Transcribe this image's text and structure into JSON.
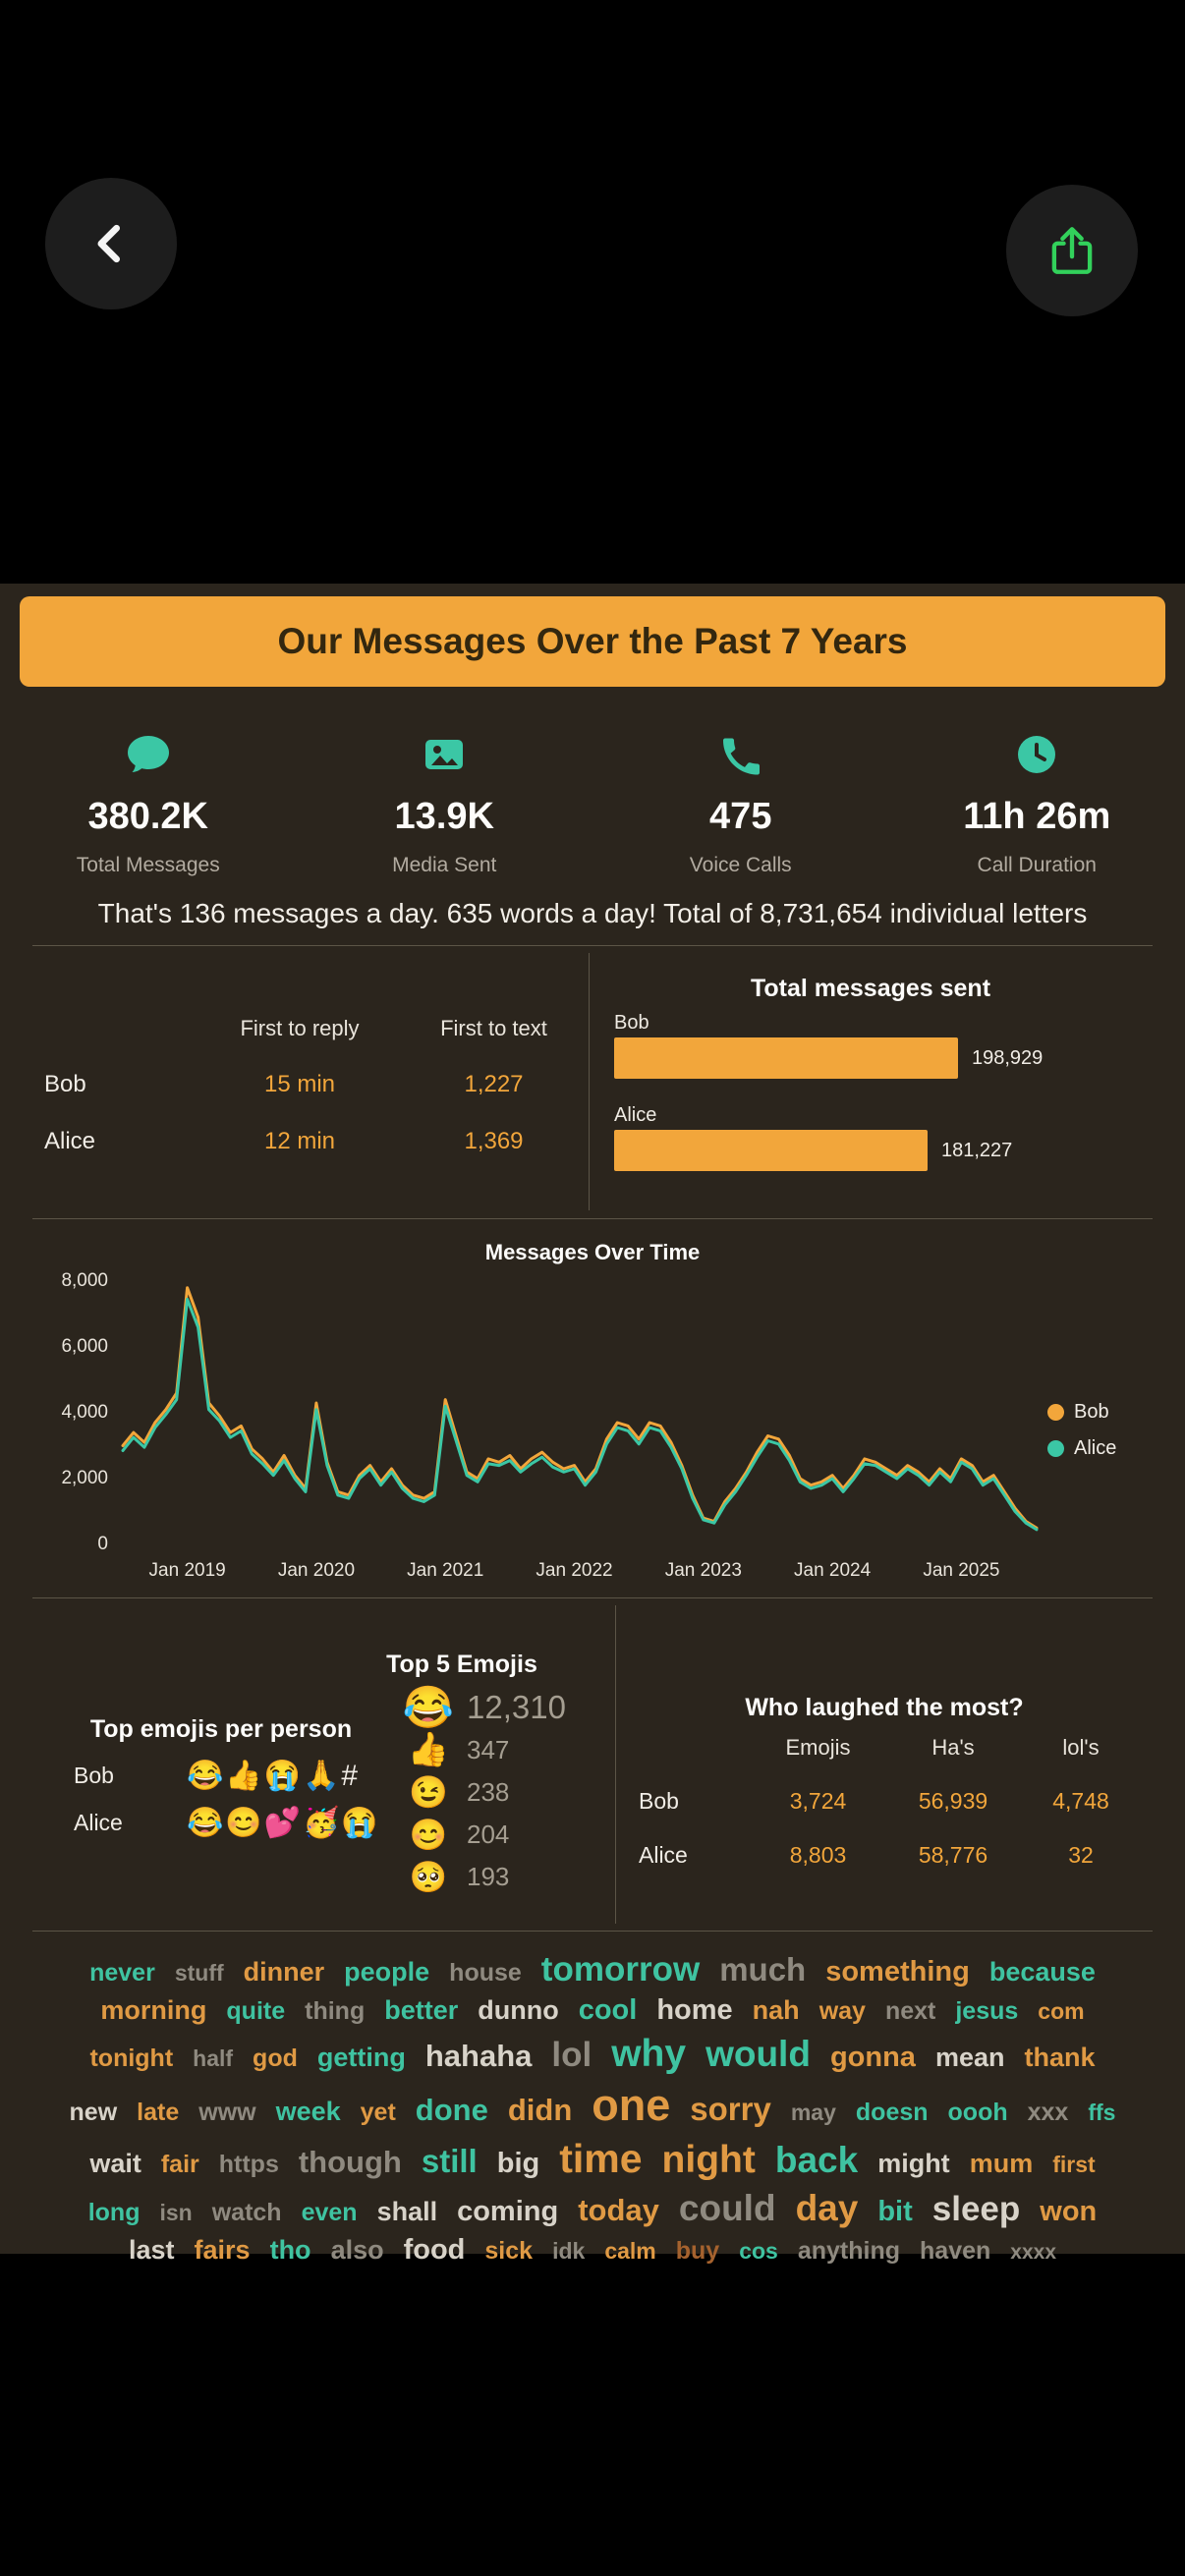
{
  "banner": {
    "title": "Our Messages Over the Past 7 Years"
  },
  "stats": [
    {
      "icon": "chat-bubble-icon",
      "value": "380.2K",
      "label": "Total Messages"
    },
    {
      "icon": "media-icon",
      "value": "13.9K",
      "label": "Media Sent"
    },
    {
      "icon": "phone-icon",
      "value": "475",
      "label": "Voice Calls"
    },
    {
      "icon": "clock-icon",
      "value": "11h 26m",
      "label": "Call Duration"
    }
  ],
  "summary": "That's 136 messages a day. 635 words a day! Total of 8,731,654 individual letters",
  "reply_table": {
    "col1": "First to reply",
    "col2": "First to text",
    "rows": [
      {
        "name": "Bob",
        "first_to_reply": "15 min",
        "first_to_text": "1,227"
      },
      {
        "name": "Alice",
        "first_to_reply": "12 min",
        "first_to_text": "1,369"
      }
    ]
  },
  "chart_data": [
    {
      "type": "bar",
      "title": "Total messages sent",
      "orientation": "horizontal",
      "categories": [
        "Bob",
        "Alice"
      ],
      "values": [
        198929,
        181227
      ],
      "value_labels": [
        "198,929",
        "181,227"
      ],
      "bar_color": "#f2a63b"
    },
    {
      "type": "line",
      "title": "Messages Over Time",
      "xlabel": "",
      "ylabel": "",
      "ylim": [
        0,
        8000
      ],
      "grid": false,
      "legend_position": "right",
      "x": [
        "2018-07",
        "2018-08",
        "2018-09",
        "2018-10",
        "2018-11",
        "2018-12",
        "2019-01",
        "2019-02",
        "2019-03",
        "2019-04",
        "2019-05",
        "2019-06",
        "2019-07",
        "2019-08",
        "2019-09",
        "2019-10",
        "2019-11",
        "2019-12",
        "2020-01",
        "2020-02",
        "2020-03",
        "2020-04",
        "2020-05",
        "2020-06",
        "2020-07",
        "2020-08",
        "2020-09",
        "2020-10",
        "2020-11",
        "2020-12",
        "2021-01",
        "2021-02",
        "2021-03",
        "2021-04",
        "2021-05",
        "2021-06",
        "2021-07",
        "2021-08",
        "2021-09",
        "2021-10",
        "2021-11",
        "2021-12",
        "2022-01",
        "2022-02",
        "2022-03",
        "2022-04",
        "2022-05",
        "2022-06",
        "2022-07",
        "2022-08",
        "2022-09",
        "2022-10",
        "2022-11",
        "2022-12",
        "2023-01",
        "2023-02",
        "2023-03",
        "2023-04",
        "2023-05",
        "2023-06",
        "2023-07",
        "2023-08",
        "2023-09",
        "2023-10",
        "2023-11",
        "2023-12",
        "2024-01",
        "2024-02",
        "2024-03",
        "2024-04",
        "2024-05",
        "2024-06",
        "2024-07",
        "2024-08",
        "2024-09",
        "2024-10",
        "2024-11",
        "2024-12",
        "2025-01",
        "2025-02",
        "2025-03",
        "2025-04",
        "2025-05",
        "2025-06",
        "2025-07",
        "2025-08"
      ],
      "series": [
        {
          "name": "Bob",
          "color": "#f2a63b",
          "values": [
            3000,
            3400,
            3100,
            3700,
            4100,
            4600,
            7800,
            6900,
            4300,
            3900,
            3400,
            3600,
            2900,
            2600,
            2200,
            2700,
            2100,
            1700,
            4300,
            2500,
            1600,
            1500,
            2100,
            2400,
            1900,
            2300,
            1800,
            1500,
            1400,
            1600,
            4400,
            3300,
            2200,
            2000,
            2600,
            2500,
            2700,
            2300,
            2600,
            2800,
            2500,
            2300,
            2400,
            1900,
            2300,
            3200,
            3700,
            3600,
            3200,
            3700,
            3600,
            3100,
            2400,
            1500,
            800,
            700,
            1300,
            1700,
            2200,
            2800,
            3300,
            3200,
            2700,
            2000,
            1800,
            1900,
            2100,
            1700,
            2100,
            2600,
            2500,
            2300,
            2100,
            2400,
            2200,
            1900,
            2300,
            2000,
            2600,
            2400,
            1900,
            2100,
            1600,
            1100,
            700,
            500
          ]
        },
        {
          "name": "Alice",
          "color": "#3bc7a5",
          "values": [
            2850,
            3250,
            2950,
            3550,
            3950,
            4400,
            7450,
            6600,
            4100,
            3750,
            3250,
            3450,
            2750,
            2450,
            2100,
            2550,
            2000,
            1600,
            4100,
            2400,
            1500,
            1400,
            2000,
            2300,
            1800,
            2200,
            1700,
            1400,
            1300,
            1500,
            4200,
            3150,
            2100,
            1900,
            2450,
            2400,
            2550,
            2200,
            2450,
            2650,
            2350,
            2200,
            2300,
            1800,
            2200,
            3050,
            3550,
            3450,
            3050,
            3550,
            3450,
            2950,
            2300,
            1400,
            750,
            650,
            1200,
            1600,
            2100,
            2650,
            3150,
            3050,
            2550,
            1900,
            1700,
            1800,
            2000,
            1600,
            2000,
            2450,
            2400,
            2200,
            2000,
            2300,
            2100,
            1800,
            2200,
            1900,
            2500,
            2300,
            1800,
            2000,
            1500,
            1000,
            650,
            450
          ]
        }
      ],
      "yticks": [
        {
          "value": 0,
          "label": "0"
        },
        {
          "value": 2000,
          "label": "2,000"
        },
        {
          "value": 4000,
          "label": "4,000"
        },
        {
          "value": 6000,
          "label": "6,000"
        },
        {
          "value": 8000,
          "label": "8,000"
        }
      ],
      "xticks": [
        {
          "i": 6,
          "label": "Jan 2019"
        },
        {
          "i": 18,
          "label": "Jan 2020"
        },
        {
          "i": 30,
          "label": "Jan 2021"
        },
        {
          "i": 42,
          "label": "Jan 2022"
        },
        {
          "i": 54,
          "label": "Jan 2023"
        },
        {
          "i": 66,
          "label": "Jan 2024"
        },
        {
          "i": 78,
          "label": "Jan 2025"
        }
      ]
    }
  ],
  "per_person_emojis": {
    "title": "Top emojis per person",
    "rows": [
      {
        "name": "Bob",
        "emojis": "😂👍😭🙏#"
      },
      {
        "name": "Alice",
        "emojis": "😂😊💕🥳😭"
      }
    ]
  },
  "top5": {
    "title": "Top 5 Emojis",
    "items": [
      {
        "emoji": "😂",
        "count": "12,310"
      },
      {
        "emoji": "👍",
        "count": "347"
      },
      {
        "emoji": "😉",
        "count": "238"
      },
      {
        "emoji": "😊",
        "count": "204"
      },
      {
        "emoji": "🥺",
        "count": "193"
      }
    ]
  },
  "laughed": {
    "title": "Who laughed the most?",
    "columns": [
      "Emojis",
      "Ha's",
      "lol's"
    ],
    "rows": [
      {
        "name": "Bob",
        "emojis": "3,724",
        "has": "56,939",
        "lols": "4,748"
      },
      {
        "name": "Alice",
        "emojis": "8,803",
        "has": "58,776",
        "lols": "32"
      }
    ]
  },
  "word_cloud": {
    "colors": {
      "o": "#e09a44",
      "t": "#3fc3a1",
      "g": "#8f8a80",
      "w": "#d8d3c9",
      "b": "#a5622e"
    },
    "words": [
      {
        "t": "never",
        "c": "t",
        "s": 25
      },
      {
        "t": "stuff",
        "c": "g",
        "s": 23
      },
      {
        "t": "dinner",
        "c": "o",
        "s": 27
      },
      {
        "t": "people",
        "c": "t",
        "s": 27
      },
      {
        "t": "house",
        "c": "g",
        "s": 25
      },
      {
        "t": "tomorrow",
        "c": "t",
        "s": 35
      },
      {
        "t": "much",
        "c": "g",
        "s": 33
      },
      {
        "t": "something",
        "c": "o",
        "s": 29
      },
      {
        "t": "because",
        "c": "t",
        "s": 27
      },
      {
        "t": "morning",
        "c": "o",
        "s": 27
      },
      {
        "t": "quite",
        "c": "t",
        "s": 25
      },
      {
        "t": "thing",
        "c": "g",
        "s": 25
      },
      {
        "t": "better",
        "c": "t",
        "s": 27
      },
      {
        "t": "dunno",
        "c": "w",
        "s": 27
      },
      {
        "t": "cool",
        "c": "t",
        "s": 29
      },
      {
        "t": "home",
        "c": "w",
        "s": 29
      },
      {
        "t": "nah",
        "c": "o",
        "s": 27
      },
      {
        "t": "way",
        "c": "o",
        "s": 25
      },
      {
        "t": "next",
        "c": "g",
        "s": 25
      },
      {
        "t": "jesus",
        "c": "t",
        "s": 25
      },
      {
        "t": "com",
        "c": "o",
        "s": 23
      },
      {
        "t": "tonight",
        "c": "o",
        "s": 25
      },
      {
        "t": "half",
        "c": "g",
        "s": 23
      },
      {
        "t": "god",
        "c": "o",
        "s": 25
      },
      {
        "t": "getting",
        "c": "t",
        "s": 27
      },
      {
        "t": "hahaha",
        "c": "w",
        "s": 31
      },
      {
        "t": "lol",
        "c": "g",
        "s": 35
      },
      {
        "t": "why",
        "c": "t",
        "s": 39
      },
      {
        "t": "would",
        "c": "t",
        "s": 37
      },
      {
        "t": "gonna",
        "c": "o",
        "s": 29
      },
      {
        "t": "mean",
        "c": "w",
        "s": 27
      },
      {
        "t": "thank",
        "c": "o",
        "s": 27
      },
      {
        "t": "new",
        "c": "w",
        "s": 25
      },
      {
        "t": "late",
        "c": "o",
        "s": 25
      },
      {
        "t": "www",
        "c": "g",
        "s": 25
      },
      {
        "t": "week",
        "c": "t",
        "s": 27
      },
      {
        "t": "yet",
        "c": "o",
        "s": 25
      },
      {
        "t": "done",
        "c": "t",
        "s": 31
      },
      {
        "t": "didn",
        "c": "o",
        "s": 31
      },
      {
        "t": "one",
        "c": "o",
        "s": 45
      },
      {
        "t": "sorry",
        "c": "o",
        "s": 33
      },
      {
        "t": "may",
        "c": "g",
        "s": 23
      },
      {
        "t": "doesn",
        "c": "t",
        "s": 25
      },
      {
        "t": "oooh",
        "c": "t",
        "s": 25
      },
      {
        "t": "xxx",
        "c": "g",
        "s": 25
      },
      {
        "t": "ffs",
        "c": "t",
        "s": 23
      },
      {
        "t": "wait",
        "c": "w",
        "s": 27
      },
      {
        "t": "fair",
        "c": "o",
        "s": 25
      },
      {
        "t": "https",
        "c": "g",
        "s": 25
      },
      {
        "t": "though",
        "c": "g",
        "s": 31
      },
      {
        "t": "still",
        "c": "t",
        "s": 33
      },
      {
        "t": "big",
        "c": "w",
        "s": 29
      },
      {
        "t": "time",
        "c": "o",
        "s": 41
      },
      {
        "t": "night",
        "c": "o",
        "s": 39
      },
      {
        "t": "back",
        "c": "t",
        "s": 37
      },
      {
        "t": "might",
        "c": "w",
        "s": 27
      },
      {
        "t": "mum",
        "c": "o",
        "s": 27
      },
      {
        "t": "first",
        "c": "o",
        "s": 23
      },
      {
        "t": "long",
        "c": "t",
        "s": 25
      },
      {
        "t": "isn",
        "c": "g",
        "s": 23
      },
      {
        "t": "watch",
        "c": "g",
        "s": 25
      },
      {
        "t": "even",
        "c": "t",
        "s": 25
      },
      {
        "t": "shall",
        "c": "w",
        "s": 27
      },
      {
        "t": "coming",
        "c": "w",
        "s": 29
      },
      {
        "t": "today",
        "c": "o",
        "s": 31
      },
      {
        "t": "could",
        "c": "g",
        "s": 37
      },
      {
        "t": "day",
        "c": "o",
        "s": 37
      },
      {
        "t": "bit",
        "c": "t",
        "s": 29
      },
      {
        "t": "sleep",
        "c": "w",
        "s": 35
      },
      {
        "t": "won",
        "c": "o",
        "s": 29
      },
      {
        "t": "last",
        "c": "w",
        "s": 27
      },
      {
        "t": "fairs",
        "c": "o",
        "s": 27
      },
      {
        "t": "tho",
        "c": "t",
        "s": 27
      },
      {
        "t": "also",
        "c": "g",
        "s": 27
      },
      {
        "t": "food",
        "c": "w",
        "s": 29
      },
      {
        "t": "sick",
        "c": "o",
        "s": 25
      },
      {
        "t": "idk",
        "c": "g",
        "s": 23
      },
      {
        "t": "calm",
        "c": "o",
        "s": 23
      },
      {
        "t": "buy",
        "c": "b",
        "s": 25
      },
      {
        "t": "cos",
        "c": "t",
        "s": 23
      },
      {
        "t": "anything",
        "c": "g",
        "s": 25
      },
      {
        "t": "haven",
        "c": "g",
        "s": 25
      },
      {
        "t": "xxxx",
        "c": "g",
        "s": 21
      }
    ]
  }
}
